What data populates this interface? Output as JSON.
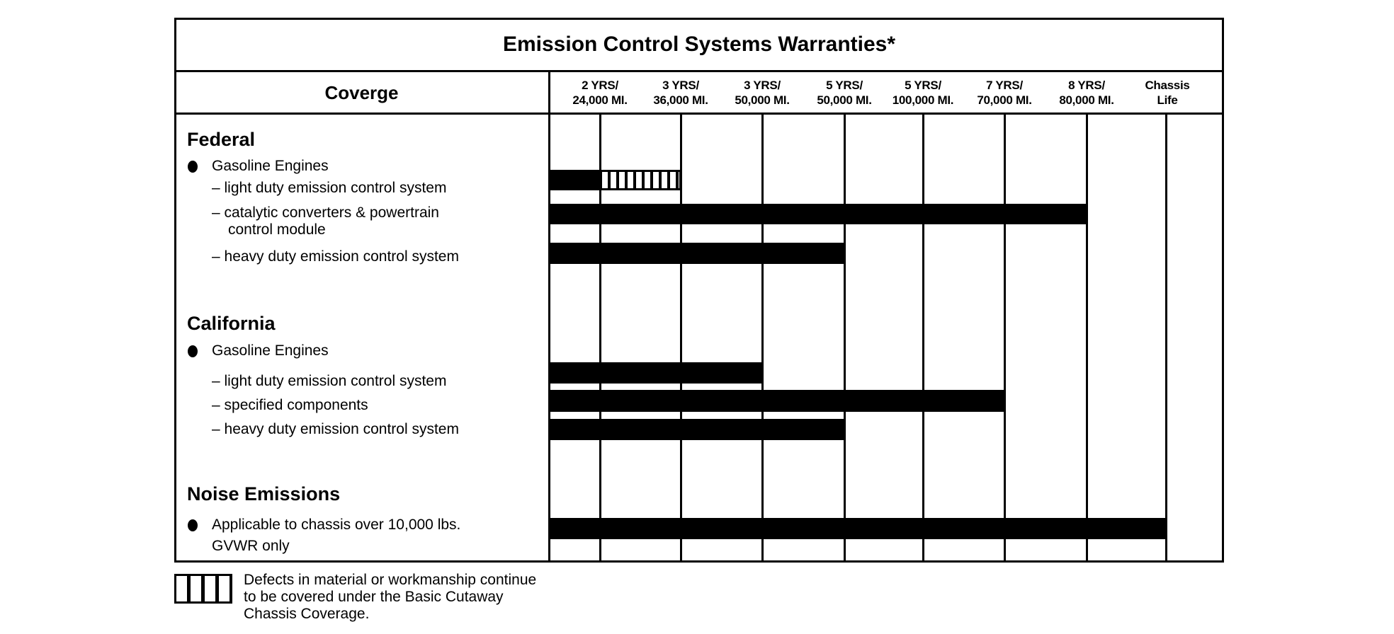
{
  "title": "Emission Control Systems Warranties*",
  "coverage_header": "Coverge",
  "columns": [
    "2 YRS/\n24,000 MI.",
    "3 YRS/\n36,000 MI.",
    "3 YRS/\n50,000 MI.",
    "5 YRS/\n50,000 MI.",
    "5 YRS/\n100,000 MI.",
    "7 YRS/\n70,000 MI.",
    "8 YRS/\n80,000 MI.",
    "Chassis\nLife"
  ],
  "sections": {
    "federal": {
      "heading": "Federal",
      "bullet": "Gasoline Engines",
      "items": [
        {
          "label": "– light duty emission control system",
          "covered_through": "2 YRS/24,000 MI.",
          "basic_coverage_through": "3 YRS/36,000 MI."
        },
        {
          "label": "– catalytic converters & powertrain",
          "label2": "control module",
          "covered_through": "8 YRS/80,000 MI."
        },
        {
          "label": "– heavy duty emission control system",
          "covered_through": "5 YRS/50,000 MI."
        }
      ]
    },
    "california": {
      "heading": "California",
      "bullet": "Gasoline Engines",
      "items": [
        {
          "label": "– light duty emission control system",
          "covered_through": "3 YRS/50,000 MI."
        },
        {
          "label": "– specified components",
          "covered_through": "7 YRS/70,000 MI."
        },
        {
          "label": "– heavy duty emission control system",
          "covered_through": "5 YRS/50,000 MI."
        }
      ]
    },
    "noise": {
      "heading": "Noise Emissions",
      "bullet": "Applicable to chassis over 10,000 lbs.",
      "bullet2": "GVWR only",
      "covered_through": "Chassis Life"
    }
  },
  "legend": {
    "pattern": "vertical-stripes",
    "lines": [
      "Defects in material or workmanship continue",
      "to be covered under the Basic Cutaway",
      "Chassis Coverage."
    ]
  },
  "colors": {
    "ink": "#000000",
    "paper": "#ffffff"
  }
}
